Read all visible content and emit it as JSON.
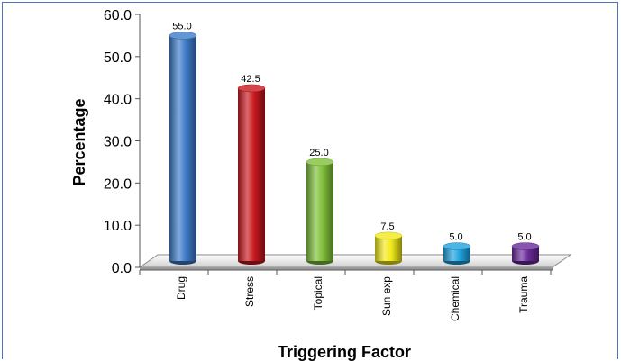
{
  "chart_data": {
    "type": "bar",
    "title": "",
    "xlabel": "Triggering Factor",
    "ylabel": "Percentage",
    "ylim": [
      0,
      60
    ],
    "yticks": [
      0,
      10,
      20,
      30,
      40,
      50,
      60
    ],
    "ytick_labels": [
      "0.0",
      "10.0",
      "20.0",
      "30.0",
      "40.0",
      "50.0",
      "60.0"
    ],
    "categories": [
      "Drug",
      "Stress",
      "Topical",
      "Sun exp",
      "Chemical",
      "Trauma"
    ],
    "values": [
      55.0,
      42.5,
      25.0,
      7.5,
      5.0,
      5.0
    ],
    "data_labels": [
      "55.0",
      "42.5",
      "25.0",
      "7.5",
      "5.0",
      "5.0"
    ],
    "colors": [
      "#3d7cc9",
      "#c8181e",
      "#80bf3a",
      "#f2ea1a",
      "#1ea3df",
      "#6a2a9a"
    ],
    "grid": false,
    "legend": "none"
  }
}
